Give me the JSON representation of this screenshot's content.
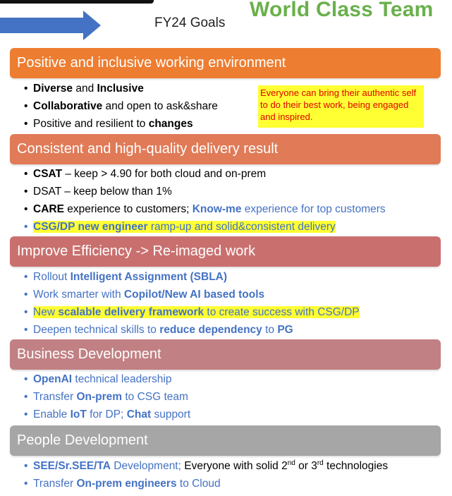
{
  "header": {
    "fy_title": "FY24 Goals",
    "team_title": "World Class Team",
    "team_color": "#6ab04c",
    "arrow_color": "#4472c4"
  },
  "sections": [
    {
      "title": "Positive and inclusive working environment",
      "color": "#ed7d31",
      "items": [
        {
          "parts": [
            {
              "t": "Diverse",
              "b": true
            },
            {
              "t": " and "
            },
            {
              "t": "Inclusive",
              "b": true
            }
          ]
        },
        {
          "parts": [
            {
              "t": "Collaborative",
              "b": true
            },
            {
              "t": " and open to ask&share"
            }
          ]
        },
        {
          "parts": [
            {
              "t": "Positive and resilient to "
            },
            {
              "t": "changes",
              "b": true
            }
          ]
        }
      ],
      "callout": "Everyone can bring their authentic self to do their best work, being engaged and inspired."
    },
    {
      "title": "Consistent and high-quality delivery result",
      "color": "#e07a57",
      "items": [
        {
          "parts": [
            {
              "t": "CSAT",
              "b": true
            },
            {
              "t": " – keep > 4.90 for both cloud and on-prem"
            }
          ]
        },
        {
          "parts": [
            {
              "t": "DSAT – keep below than 1%"
            }
          ]
        },
        {
          "parts": [
            {
              "t": "CARE",
              "b": true
            },
            {
              "t": " experience to customers; "
            },
            {
              "t": "Know-me",
              "b": true,
              "blue": true
            },
            {
              "t": " experience for top customers",
              "blue": true
            }
          ]
        },
        {
          "highlight": true,
          "parts": [
            {
              "t": "CSG/DP new engineer",
              "b": true,
              "blue": true
            },
            {
              "t": " ramp-up and solid&consistent delivery",
              "blue": true
            }
          ]
        }
      ]
    },
    {
      "title": "Improve Efficiency -> Re-imaged work",
      "color": "#c9706f",
      "items": [
        {
          "parts": [
            {
              "t": "Rollout ",
              "blue": true
            },
            {
              "t": "Intelligent Assignment (SBLA)",
              "b": true,
              "blue": true
            }
          ]
        },
        {
          "parts": [
            {
              "t": "Work smarter with ",
              "blue": true
            },
            {
              "t": "Copilot/New AI based tools",
              "b": true,
              "blue": true
            }
          ]
        },
        {
          "highlight": true,
          "parts": [
            {
              "t": "New ",
              "blue": true
            },
            {
              "t": "scalable delivery framework",
              "b": true,
              "blue": true
            },
            {
              "t": " to create success with CSG/DP",
              "blue": true
            }
          ]
        },
        {
          "parts": [
            {
              "t": "Deepen technical skills to ",
              "blue": true
            },
            {
              "t": "reduce dependency",
              "b": true,
              "blue": true
            },
            {
              "t": " to ",
              "blue": true
            },
            {
              "t": "PG",
              "b": true,
              "blue": true
            }
          ]
        }
      ]
    },
    {
      "title": "Business Development",
      "color": "#c18083",
      "items": [
        {
          "parts": [
            {
              "t": "OpenAI",
              "b": true,
              "blue": true
            },
            {
              "t": " technical leadership",
              "blue": true
            }
          ]
        },
        {
          "parts": [
            {
              "t": "Transfer ",
              "blue": true
            },
            {
              "t": "On-prem",
              "b": true,
              "blue": true
            },
            {
              "t": " to CSG team",
              "blue": true
            }
          ]
        },
        {
          "parts": [
            {
              "t": "Enable ",
              "blue": true
            },
            {
              "t": "IoT",
              "b": true,
              "blue": true
            },
            {
              "t": " for DP; ",
              "blue": true
            },
            {
              "t": "Chat",
              "b": true,
              "blue": true
            },
            {
              "t": " support",
              "blue": true
            }
          ]
        }
      ]
    },
    {
      "title": "People Development",
      "color": "#a6a6a6",
      "items": [
        {
          "parts": [
            {
              "t": "SEE/Sr.SEE/TA",
              "b": true,
              "blue": true
            },
            {
              "t": " Development; ",
              "blue": true
            },
            {
              "t": "Everyone with solid 2"
            },
            {
              "t": "nd",
              "sup": true
            },
            {
              "t": " or 3"
            },
            {
              "t": "rd",
              "sup": true
            },
            {
              "t": " technologies"
            }
          ]
        },
        {
          "parts": [
            {
              "t": "Transfer ",
              "blue": true
            },
            {
              "t": "On-prem engineers",
              "b": true,
              "blue": true
            },
            {
              "t": " to Cloud",
              "blue": true
            }
          ]
        }
      ]
    }
  ]
}
